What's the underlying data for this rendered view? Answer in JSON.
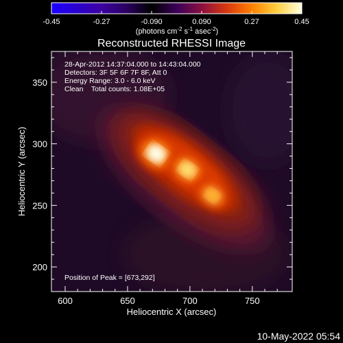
{
  "colors": {
    "background": "#000000",
    "text": "#ffffff"
  },
  "colorbar": {
    "ticks": [
      "-0.45",
      "-0.27",
      "-0.090",
      "0.090",
      "0.27",
      "0.45"
    ],
    "tick_values": [
      -0.45,
      -0.27,
      -0.09,
      0.09,
      0.27,
      0.45
    ],
    "range": [
      -0.45,
      0.45
    ],
    "label_main": "(photons cm",
    "label_sup1": "-2",
    "label_mid1": " s",
    "label_sup2": "-1",
    "label_mid2": " asec",
    "label_sup3": "-2",
    "label_end": ")",
    "colors": [
      "#1a00ff",
      "#2a00d0",
      "#3c00a0",
      "#2a0060",
      "#000000",
      "#3a0058",
      "#8a1040",
      "#d83810",
      "#ff8000",
      "#ffd040",
      "#ffffe0"
    ]
  },
  "chart_data": {
    "type": "heatmap",
    "title": "Reconstructed RHESSI Image",
    "xlabel": "Heliocentric X (arcsec)",
    "ylabel": "Heliocentric Y (arcsec)",
    "xlim": [
      589,
      782
    ],
    "ylim": [
      180,
      375
    ],
    "xticks": [
      "600",
      "650",
      "700",
      "750"
    ],
    "xtick_values": [
      600,
      650,
      700,
      750
    ],
    "yticks": [
      "200",
      "250",
      "300",
      "350"
    ],
    "ytick_values": [
      200,
      250,
      300,
      350
    ],
    "annotations": [
      "28-Apr-2012 14:37:04.000 to 14:43:04.000",
      "Detectors: 3F 5F 6F 7F 8F, Att 0",
      "Energy Range: 3.0 - 6.0 keV",
      "Clean    Total counts: 1.08E+05"
    ],
    "peak_label": "Position of Peak = [673,292]",
    "peak": [
      673,
      292
    ],
    "sources": [
      {
        "x": 673,
        "y": 292,
        "value": 0.45
      },
      {
        "x": 698,
        "y": 279,
        "value": 0.36
      },
      {
        "x": 718,
        "y": 258,
        "value": 0.25
      }
    ]
  },
  "timestamp": "10-May-2022 05:54"
}
